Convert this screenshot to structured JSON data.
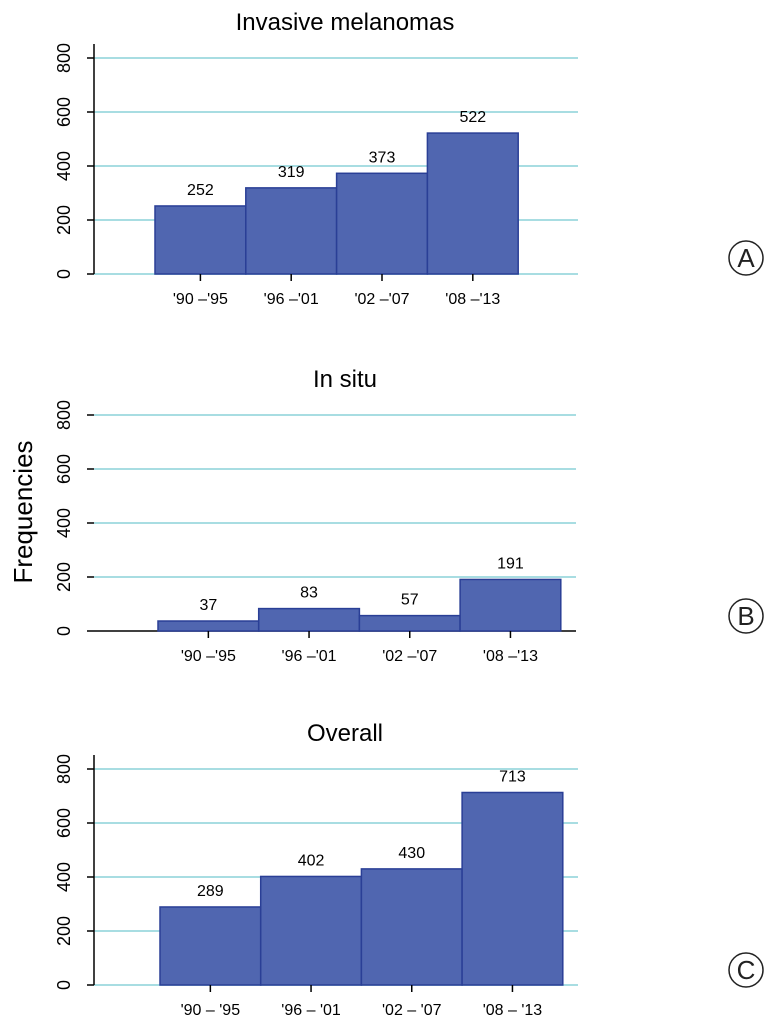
{
  "ylabel": "Frequencies",
  "chart_data": [
    {
      "type": "bar",
      "title": "Invasive melanomas",
      "categories": [
        "'90 –'95",
        "'96 –'01",
        "'02 –'07",
        "'08 –'13"
      ],
      "values": [
        252,
        319,
        373,
        522
      ],
      "ylim": [
        0,
        800
      ],
      "yticks": [
        0,
        200,
        400,
        600,
        800
      ],
      "grid": true,
      "bar_color": "#5066b0",
      "grid_color": "#a8dde2",
      "panel_label": "A"
    },
    {
      "type": "bar",
      "title": "In situ",
      "categories": [
        "'90 –'95",
        "'96 –'01",
        "'02 –'07",
        "'08 –'13"
      ],
      "values": [
        37,
        83,
        57,
        191
      ],
      "ylim": [
        0,
        800
      ],
      "yticks": [
        0,
        200,
        400,
        600,
        800
      ],
      "grid": true,
      "bar_color": "#5066b0",
      "grid_color": "#a8dde2",
      "panel_label": "B"
    },
    {
      "type": "bar",
      "title": "Overall",
      "categories": [
        "'90 – '95",
        "'96 – '01",
        "'02 – '07",
        "'08 – '13"
      ],
      "values": [
        289,
        402,
        430,
        713
      ],
      "ylim": [
        0,
        800
      ],
      "yticks": [
        0,
        200,
        400,
        600,
        800
      ],
      "grid": true,
      "bar_color": "#5066b0",
      "grid_color": "#a8dde2",
      "panel_label": "C"
    }
  ]
}
